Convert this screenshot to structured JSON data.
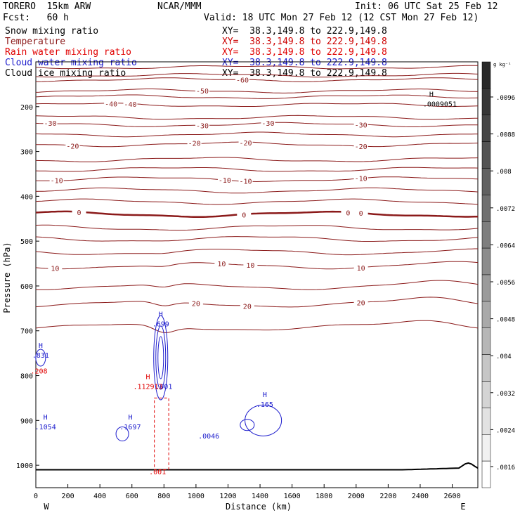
{
  "header": {
    "model": "TORERO  15km ARW",
    "center": "NCAR/MMM",
    "init": "Init: 06 UTC Sat 25 Feb 12",
    "fcst": "Fcst:   60 h",
    "valid": "Valid: 18 UTC Mon 27 Feb 12 (12 CST Mon 27 Feb 12)"
  },
  "fields": [
    {
      "name": "Snow mixing ratio",
      "xy": "XY=  38.3,149.8 to 222.9,149.8",
      "color": "#000000",
      "xycolor": "#000000"
    },
    {
      "name": "Temperature",
      "xy": "XY=  38.3,149.8 to 222.9,149.8",
      "color": "#8b1a1a",
      "xycolor": "#cc0000"
    },
    {
      "name": "Rain water mixing ratio",
      "xy": "XY=  38.3,149.8 to 222.9,149.8",
      "color": "#e00000",
      "xycolor": "#e00000"
    },
    {
      "name": "Cloud water mixing ratio",
      "xy": "XY=  38.3,149.8 to 222.9,149.8",
      "color": "#1a1acc",
      "xycolor": "#1a1acc"
    },
    {
      "name": "Cloud ice mixing ratio",
      "xy": "XY=  38.3,149.8 to 222.9,149.8",
      "color": "#000000",
      "xycolor": "#000000"
    }
  ],
  "chart_data": {
    "type": "line",
    "xlabel": "Distance (km)",
    "ylabel": "Pressure (hPa)",
    "xlim": [
      0,
      2760
    ],
    "ylim": [
      1050,
      100
    ],
    "x_ticks": [
      0,
      200,
      400,
      600,
      800,
      1000,
      1200,
      1400,
      1600,
      1800,
      2000,
      2200,
      2400,
      2600
    ],
    "y_ticks": [
      200,
      300,
      400,
      500,
      600,
      700,
      800,
      900,
      1000
    ],
    "x_end_labels": {
      "left": "W",
      "right": "E"
    },
    "temperature_levels": [
      {
        "p": 112,
        "label": null
      },
      {
        "p": 130,
        "label": null
      },
      {
        "p": 140,
        "label": "-60",
        "label_x": [
          1290
        ]
      },
      {
        "p": 165,
        "label": "-50",
        "label_x": [
          1040
        ]
      },
      {
        "p": 178,
        "label": null
      },
      {
        "p": 196,
        "label": "-40",
        "label_x": [
          470,
          590
        ]
      },
      {
        "p": 224,
        "label": null
      },
      {
        "p": 240,
        "label": "-30",
        "label_x": [
          90,
          1040,
          1450,
          2030
        ]
      },
      {
        "p": 262,
        "label": null
      },
      {
        "p": 284,
        "label": "-20",
        "label_x": [
          230,
          990,
          1310,
          2030
        ]
      },
      {
        "p": 318,
        "label": null
      },
      {
        "p": 340,
        "label": null
      },
      {
        "p": 362,
        "label": "-10",
        "label_x": [
          130,
          1180,
          1310,
          2030
        ]
      },
      {
        "p": 387,
        "label": null
      },
      {
        "p": 412,
        "label": null
      },
      {
        "p": 440,
        "label": "0",
        "label_x": [
          270,
          1300,
          1950,
          2030
        ],
        "bold": true
      },
      {
        "p": 470,
        "label": null
      },
      {
        "p": 495,
        "label": null
      },
      {
        "p": 524,
        "label": null
      },
      {
        "p": 555,
        "label": "10",
        "label_x": [
          120,
          1160,
          1340,
          2030
        ]
      },
      {
        "p": 601,
        "label": null
      },
      {
        "p": 640,
        "label": "20",
        "label_x": [
          1000,
          1320,
          2030
        ]
      },
      {
        "p": 692,
        "label": null
      }
    ],
    "cloud_water": {
      "color": "#1a1acc",
      "maxima": [
        {
          "x": 780,
          "p": 690,
          "label": "H",
          "value": ".699"
        },
        {
          "x": 30,
          "p": 760,
          "label": "H",
          "value": ".831"
        },
        {
          "x": 60,
          "p": 920,
          "label": "H",
          "value": ".1054"
        },
        {
          "x": 590,
          "p": 920,
          "label": "H",
          "value": ".1697"
        },
        {
          "x": 1430,
          "p": 870,
          "label": "H",
          "value": ".165"
        },
        {
          "x": 1080,
          "p": 940,
          "label": "",
          "value": ".0046"
        },
        {
          "x": 800,
          "p": 830,
          "label": "",
          "value": ".001"
        }
      ]
    },
    "rain_water": {
      "color": "#e00000",
      "maxima": [
        {
          "x": 20,
          "p": 795,
          "label": "",
          "value": ".208"
        },
        {
          "x": 700,
          "p": 830,
          "label": "H",
          "value": ".112913"
        },
        {
          "x": 760,
          "p": 1020,
          "label": "",
          "value": ".001"
        }
      ]
    },
    "snow": {
      "color": "#000000",
      "maxima": [
        {
          "x": 2470,
          "p": 190,
          "label": "H",
          "value": ".0009051"
        }
      ]
    },
    "colorbar": {
      "unit": "g kg⁻¹",
      "labels": [
        ".0096",
        ".0088",
        ".008",
        ".0072",
        ".0064",
        ".0056",
        ".0048",
        ".004",
        ".0032",
        ".0024",
        ".0016"
      ]
    }
  }
}
